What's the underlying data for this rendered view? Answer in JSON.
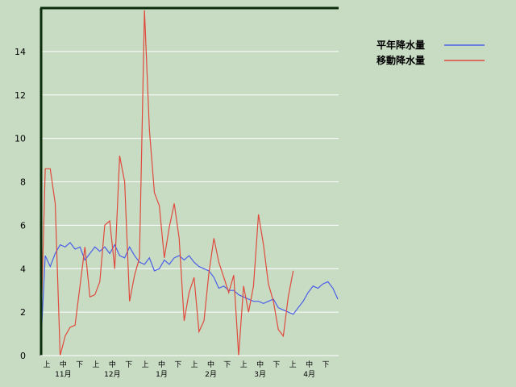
{
  "chart_data": {
    "type": "line",
    "title": "",
    "xlabel": "",
    "ylabel": "",
    "ylim": [
      0,
      16
    ],
    "y_ticks": [
      0,
      2,
      4,
      6,
      8,
      10,
      12,
      14
    ],
    "grid": "horizontal",
    "legend_position": "top-right",
    "x_period_labels": [
      "上",
      "中",
      "下",
      "上",
      "中",
      "下",
      "上",
      "中",
      "下",
      "上",
      "中",
      "下",
      "上",
      "中",
      "下",
      "上",
      "中",
      "下"
    ],
    "x_month_labels": [
      "11月",
      "12月",
      "1月",
      "2月",
      "3月",
      "4月"
    ],
    "series": [
      {
        "name": "平年降水量",
        "color": "#4a5ee8",
        "values": [
          0,
          4.6,
          4.1,
          4.7,
          5.1,
          5.0,
          5.2,
          4.9,
          5.0,
          4.4,
          4.7,
          5.0,
          4.8,
          5.0,
          4.7,
          5.1,
          4.6,
          4.5,
          5.0,
          4.6,
          4.3,
          4.2,
          4.5,
          3.9,
          4.0,
          4.4,
          4.2,
          4.5,
          4.6,
          4.4,
          4.6,
          4.3,
          4.1,
          4.0,
          3.9,
          3.6,
          3.1,
          3.2,
          3.0,
          3.0,
          2.8,
          2.7,
          2.6,
          2.5,
          2.5,
          2.4,
          2.5,
          2.6,
          2.2,
          2.1,
          2.0,
          1.9,
          2.2,
          2.5,
          2.9,
          3.2,
          3.1,
          3.3,
          3.4,
          3.1,
          2.6
        ]
      },
      {
        "name": "移動降水量",
        "color": "#e04a3c",
        "values": [
          0,
          8.6,
          8.6,
          7.0,
          0.0,
          0.9,
          1.3,
          1.4,
          3.2,
          5.0,
          2.7,
          2.8,
          3.4,
          6.0,
          6.2,
          4.0,
          9.2,
          8.0,
          2.5,
          3.7,
          4.5,
          15.9,
          10.4,
          7.5,
          6.9,
          4.5,
          5.9,
          7.0,
          5.4,
          1.6,
          2.9,
          3.6,
          1.1,
          1.6,
          3.8,
          5.4,
          4.3,
          3.6,
          2.9,
          3.7,
          0.0,
          3.2,
          2.0,
          3.2,
          6.5,
          5.1,
          3.3,
          2.5,
          1.2,
          0.9,
          2.7,
          3.9
        ]
      }
    ]
  }
}
